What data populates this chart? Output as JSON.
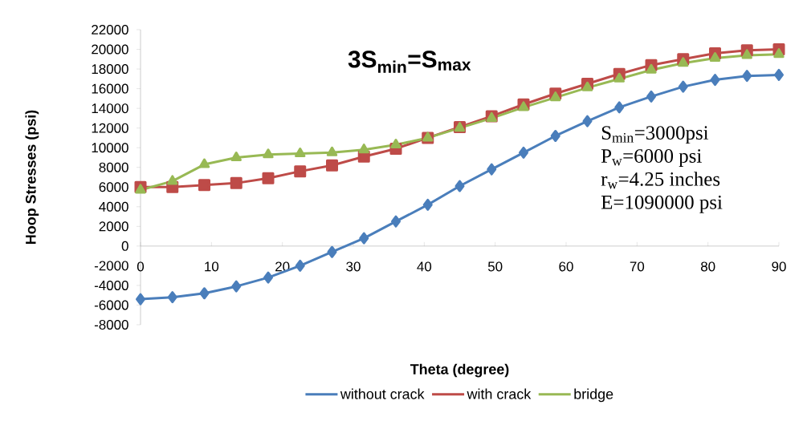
{
  "chart_data": {
    "type": "line",
    "title": "3S$_{min}$=S$_{max}$",
    "xlabel": "Theta (degree)",
    "ylabel": "Hoop Stresses (psi)",
    "x": [
      0,
      4.5,
      9,
      13.5,
      18,
      22.5,
      27,
      31.5,
      36,
      40.5,
      45,
      49.5,
      54,
      58.5,
      63,
      67.5,
      72,
      76.5,
      81,
      85.5,
      90
    ],
    "series": [
      {
        "name": "without crack",
        "color": "#4a7ebb",
        "marker": "diamond",
        "values": [
          -5400,
          -5200,
          -4800,
          -4100,
          -3200,
          -2000,
          -600,
          800,
          2500,
          4200,
          6100,
          7800,
          9500,
          11200,
          12700,
          14100,
          15200,
          16200,
          16900,
          17300,
          17400
        ]
      },
      {
        "name": "with crack",
        "color": "#be4b48",
        "marker": "square",
        "values": [
          6000,
          6000,
          6200,
          6400,
          6900,
          7600,
          8200,
          9100,
          9900,
          11000,
          12100,
          13200,
          14400,
          15500,
          16500,
          17500,
          18400,
          19000,
          19600,
          19900,
          20000
        ]
      },
      {
        "name": "bridge",
        "color": "#98b954",
        "marker": "triangle",
        "values": [
          5700,
          6600,
          8300,
          9000,
          9300,
          9400,
          9500,
          9800,
          10300,
          11000,
          12000,
          13000,
          14100,
          15100,
          16100,
          17000,
          17900,
          18600,
          19100,
          19400,
          19500
        ]
      }
    ],
    "xlim": [
      0,
      90
    ],
    "xticks": [
      0,
      10,
      20,
      30,
      40,
      50,
      60,
      70,
      80,
      90
    ],
    "ylim": [
      -8000,
      22000
    ],
    "yticks": [
      -8000,
      -6000,
      -4000,
      -2000,
      0,
      2000,
      4000,
      6000,
      8000,
      10000,
      12000,
      14000,
      16000,
      18000,
      20000,
      22000
    ],
    "annotations": [
      "S$_{min}$=3000psi",
      "P$_{w}$=6000 psi",
      "r$_{w}$=4.25 inches",
      "E=1090000 psi"
    ],
    "legend": "bottom",
    "grid": false,
    "line_style": "solid"
  }
}
